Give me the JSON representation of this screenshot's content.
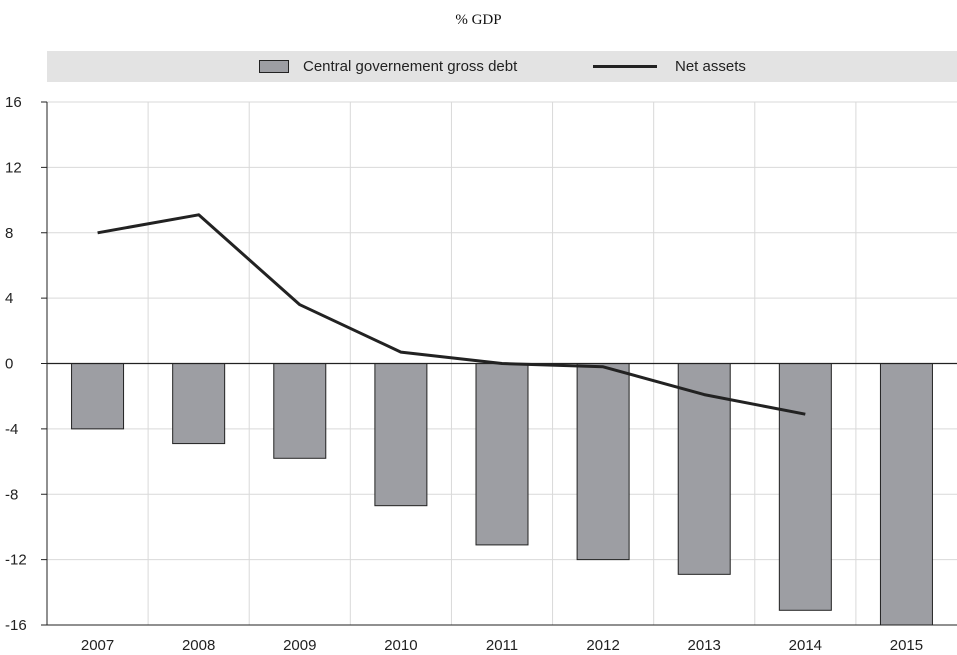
{
  "chart_data": {
    "type": "bar",
    "title": "",
    "subtitle": "% GDP",
    "xlabel": "",
    "ylabel": "",
    "categories": [
      "2007",
      "2008",
      "2009",
      "2010",
      "2011",
      "2012",
      "2013",
      "2014",
      "2015"
    ],
    "ylim": [
      -16,
      16
    ],
    "yticks": [
      "16",
      "12",
      "8",
      "4",
      "0",
      "-4",
      "-8",
      "-12",
      "-16"
    ],
    "ytick_values": [
      16,
      12,
      8,
      4,
      0,
      -4,
      -8,
      -12,
      -16
    ],
    "grid": true,
    "legend_position": "top",
    "series": [
      {
        "name": "Central governement gross debt",
        "kind": "bar",
        "color": "#9d9ea3",
        "values": [
          -4.0,
          -4.9,
          -5.8,
          -8.7,
          -11.1,
          -12.0,
          -12.9,
          -15.1,
          -16.0
        ]
      },
      {
        "name": "Net assets",
        "kind": "line",
        "color": "#222222",
        "values": [
          8.0,
          9.1,
          3.6,
          0.7,
          0.0,
          -0.2,
          -1.9,
          -3.1,
          null
        ]
      }
    ]
  }
}
